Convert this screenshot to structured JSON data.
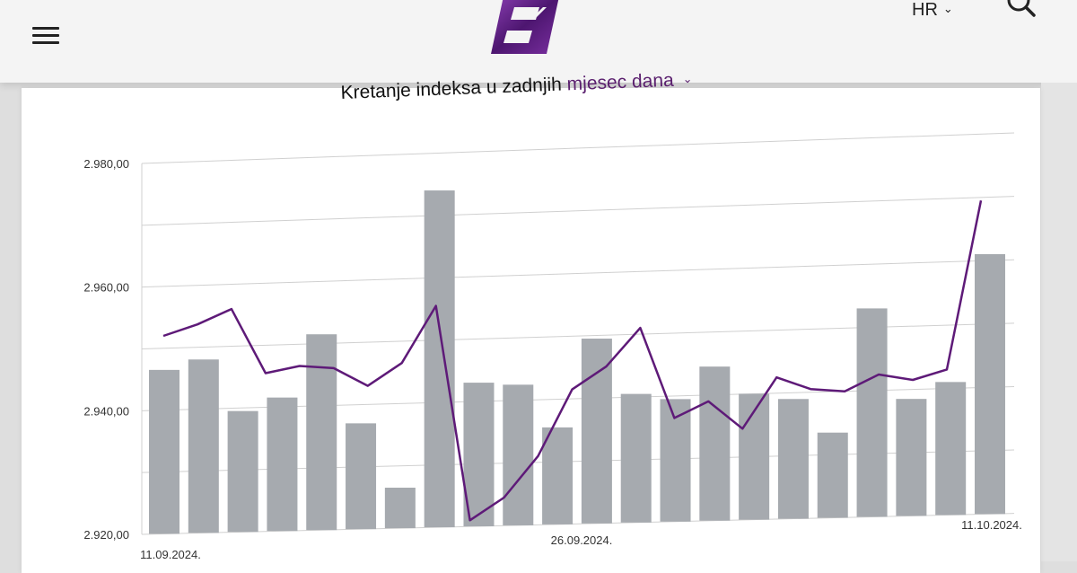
{
  "header": {
    "menu_icon": "hamburger-icon",
    "logo_icon": "brand-logo",
    "language": "HR",
    "search_icon": "search-icon"
  },
  "title": {
    "prefix": "Kretanje indeksa u zadnjih",
    "period": "mjesec dana"
  },
  "colors": {
    "bars": "#a6aaaf",
    "line": "#5e1a78",
    "accent": "#5a1f6e",
    "grid": "#d0d0d0"
  },
  "chart_data": {
    "type": "bar",
    "ylim": [
      2920,
      2980
    ],
    "y_ticks": [
      "2.920,00",
      "2.940,00",
      "2.960,00",
      "2.980,00"
    ],
    "x_labels": [
      "11.09.2024.",
      "26.09.2024.",
      "11.10.2024."
    ],
    "series": [
      {
        "type": "bar",
        "values": [
          2946.5,
          2948.0,
          2939.5,
          2941.5,
          2951.5,
          2937.0,
          2926.5,
          2974.0,
          2943.0,
          2942.5,
          2935.5,
          2949.5,
          2940.5,
          2939.5,
          2944.5,
          2940.0,
          2939.0,
          2933.5,
          2953.0,
          2938.5,
          2941.0,
          2961.0
        ]
      },
      {
        "type": "line",
        "values": [
          2952.0,
          2953.7,
          2956.0,
          2945.5,
          2946.5,
          2946.0,
          2943.0,
          2946.5,
          2955.5,
          2921.0,
          2924.5,
          2931.0,
          2941.5,
          2945.0,
          2951.0,
          2936.5,
          2939.0,
          2934.5,
          2942.5,
          2940.5,
          2940.0,
          2942.5,
          2941.5,
          2943.0,
          2969.5
        ]
      }
    ]
  }
}
